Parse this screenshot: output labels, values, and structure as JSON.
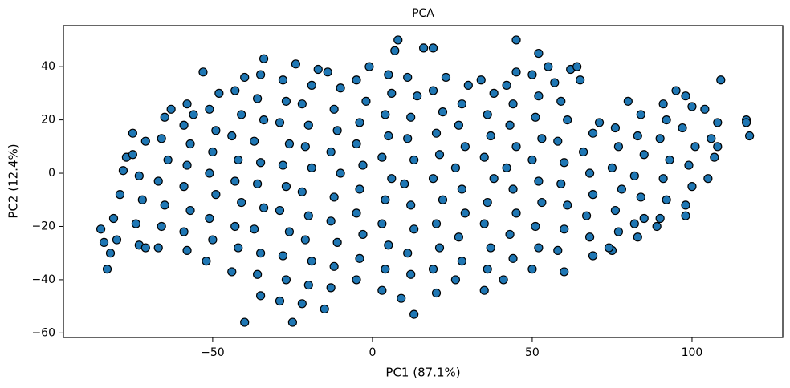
{
  "chart_data": {
    "type": "scatter",
    "title": "PCA",
    "xlabel": "PC1 (87.1%)",
    "ylabel": "PC2 (12.4%)",
    "color": "#1f77b4",
    "edgecolor": "#000000",
    "xlim": [
      -96.7,
      128.4
    ],
    "ylim": [
      -61.7,
      55.4
    ],
    "xticks": [
      {
        "value": -50,
        "label": "−50"
      },
      0,
      50,
      100
    ],
    "yticks": [
      {
        "value": -60,
        "label": "−60"
      },
      {
        "value": -40,
        "label": "−40"
      },
      {
        "value": -20,
        "label": "−20"
      },
      0,
      20,
      40
    ],
    "x": [
      -81,
      -79,
      -78,
      -77,
      -80,
      -75,
      -73,
      -74,
      -72,
      -73,
      -75,
      -71,
      -67,
      -66,
      -65,
      -67,
      -64,
      -66,
      -65,
      -63,
      -58,
      -59,
      -57,
      -59,
      -58,
      -57,
      -59,
      -58,
      -56,
      -52,
      -50,
      -51,
      -49,
      -51,
      -50,
      -49,
      -51,
      -53,
      -48,
      -44,
      -42,
      -43,
      -41,
      -43,
      -42,
      -44,
      -41,
      -43,
      -40,
      -40,
      -35,
      -36,
      -35,
      -37,
      -34,
      -36,
      -35,
      -37,
      -34,
      -36,
      -35,
      -34,
      -25,
      -29,
      -27,
      -28,
      -26,
      -29,
      -27,
      -28,
      -26,
      -29,
      -27,
      -28,
      -24,
      -22,
      -20,
      -19,
      -21,
      -20,
      -22,
      -19,
      -21,
      -20,
      -22,
      -19,
      -17,
      -15,
      -13,
      -12,
      -11,
      -13,
      -12,
      -10,
      -13,
      -11,
      -12,
      -10,
      -14,
      -5,
      -4,
      -3,
      -5,
      -4,
      -3,
      -5,
      -4,
      -2,
      -5,
      -1,
      3,
      4,
      5,
      3,
      4,
      6,
      3,
      5,
      4,
      6,
      7,
      8,
      5,
      13,
      9,
      12,
      11,
      13,
      12,
      10,
      13,
      11,
      12,
      14,
      11,
      16,
      20,
      19,
      21,
      20,
      22,
      19,
      21,
      20,
      22,
      19,
      19,
      23,
      26,
      28,
      27,
      29,
      28,
      26,
      29,
      27,
      28,
      30,
      35,
      36,
      37,
      35,
      36,
      38,
      35,
      37,
      36,
      38,
      34,
      41,
      44,
      43,
      45,
      44,
      42,
      45,
      43,
      44,
      42,
      45,
      50,
      52,
      51,
      53,
      52,
      50,
      53,
      51,
      52,
      50,
      45,
      52,
      55,
      58,
      60,
      61,
      59,
      60,
      58,
      61,
      59,
      57,
      62,
      64,
      60,
      69,
      68,
      67,
      69,
      68,
      66,
      69,
      65,
      71,
      75,
      77,
      76,
      78,
      75,
      77,
      76,
      74,
      83,
      85,
      84,
      82,
      85,
      83,
      84,
      80,
      82,
      90,
      92,
      91,
      93,
      90,
      92,
      91,
      89,
      98,
      100,
      99,
      101,
      97,
      100,
      98,
      95,
      98,
      105,
      107,
      106,
      108,
      104,
      109,
      108,
      117,
      117,
      118,
      -85,
      -84,
      -83,
      -82,
      -71
    ],
    "values": [
      -17,
      -8,
      1,
      6,
      -25,
      15,
      -27,
      -19,
      -10,
      -1,
      7,
      12,
      -28,
      -20,
      -12,
      -3,
      5,
      13,
      21,
      24,
      -29,
      -22,
      -14,
      -5,
      3,
      11,
      18,
      26,
      22,
      -33,
      -25,
      -17,
      -8,
      0,
      8,
      16,
      24,
      38,
      30,
      -37,
      -28,
      -20,
      -11,
      -3,
      5,
      14,
      22,
      31,
      36,
      -56,
      -46,
      -38,
      -30,
      -21,
      -13,
      -4,
      4,
      12,
      20,
      28,
      37,
      43,
      -56,
      -48,
      -40,
      -31,
      -22,
      -14,
      -5,
      3,
      11,
      19,
      27,
      35,
      41,
      -49,
      -42,
      -33,
      -25,
      -16,
      -7,
      2,
      10,
      18,
      26,
      33,
      39,
      -51,
      -43,
      -35,
      -26,
      -18,
      -9,
      0,
      8,
      16,
      24,
      32,
      38,
      -40,
      -32,
      -23,
      -15,
      -6,
      3,
      11,
      19,
      27,
      35,
      40,
      -44,
      -36,
      -27,
      -19,
      -10,
      -2,
      6,
      14,
      22,
      30,
      46,
      50,
      37,
      -53,
      -47,
      -38,
      -30,
      -21,
      -12,
      -4,
      5,
      13,
      21,
      29,
      36,
      47,
      -45,
      -36,
      -28,
      -19,
      -10,
      -2,
      7,
      15,
      23,
      31,
      47,
      36,
      -40,
      -33,
      -24,
      -15,
      -6,
      2,
      10,
      18,
      26,
      33,
      -44,
      -36,
      -28,
      -19,
      -11,
      -2,
      6,
      14,
      22,
      30,
      35,
      -40,
      -32,
      -23,
      -15,
      -6,
      2,
      10,
      18,
      26,
      33,
      38,
      -36,
      -28,
      -20,
      -11,
      -3,
      5,
      13,
      21,
      29,
      37,
      50,
      45,
      40,
      -29,
      -21,
      -12,
      -4,
      4,
      12,
      20,
      27,
      34,
      39,
      40,
      -37,
      -31,
      -24,
      -16,
      -8,
      0,
      8,
      15,
      35,
      19,
      -29,
      -22,
      -14,
      -6,
      2,
      10,
      17,
      -28,
      -24,
      -17,
      -9,
      -1,
      7,
      14,
      22,
      27,
      -19,
      -17,
      -10,
      -2,
      5,
      13,
      20,
      26,
      -20,
      -12,
      -5,
      3,
      10,
      17,
      25,
      29,
      31,
      -16,
      -2,
      6,
      13,
      19,
      24,
      35,
      10,
      20,
      19,
      14,
      -21,
      -26,
      -36,
      -30,
      -28
    ]
  }
}
